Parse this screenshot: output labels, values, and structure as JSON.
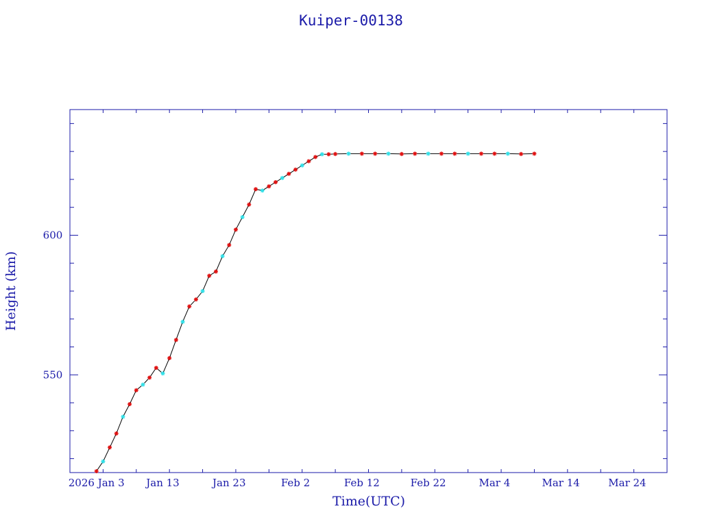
{
  "colors": {
    "axis": "#1a1aa8",
    "line": "#000000",
    "marker_primary": "#e01010",
    "marker_secondary": "#33e0e8"
  },
  "chart_data": {
    "type": "line",
    "title": "Kuiper-00138",
    "xlabel": "Time(UTC)",
    "ylabel": "Height (km)",
    "x_type": "date",
    "xlim": [
      "2025-12-30",
      "2026-03-30"
    ],
    "ylim": [
      515,
      645
    ],
    "x_ticks": [
      {
        "date": "2026-01-03",
        "label": "2026 Jan  3"
      },
      {
        "date": "2026-01-13",
        "label": "Jan 13"
      },
      {
        "date": "2026-01-23",
        "label": "Jan 23"
      },
      {
        "date": "2026-02-02",
        "label": "Feb  2"
      },
      {
        "date": "2026-02-12",
        "label": "Feb 12"
      },
      {
        "date": "2026-02-22",
        "label": "Feb 22"
      },
      {
        "date": "2026-03-04",
        "label": "Mar  4"
      },
      {
        "date": "2026-03-14",
        "label": "Mar 14"
      },
      {
        "date": "2026-03-24",
        "label": "Mar 24"
      }
    ],
    "y_ticks": [
      {
        "value": 550,
        "label": "550"
      },
      {
        "value": 600,
        "label": "600"
      }
    ],
    "series": [
      {
        "points": [
          [
            "2026-01-03",
            515.5
          ],
          [
            "2026-01-04",
            519.0
          ],
          [
            "2026-01-05",
            524.0
          ],
          [
            "2026-01-06",
            529.0
          ],
          [
            "2026-01-07",
            535.0
          ],
          [
            "2026-01-08",
            539.5
          ],
          [
            "2026-01-09",
            544.5
          ],
          [
            "2026-01-10",
            546.5
          ],
          [
            "2026-01-11",
            549.0
          ],
          [
            "2026-01-12",
            552.5
          ],
          [
            "2026-01-13",
            550.5
          ],
          [
            "2026-01-14",
            556.0
          ],
          [
            "2026-01-15",
            562.5
          ],
          [
            "2026-01-16",
            569.0
          ],
          [
            "2026-01-17",
            574.5
          ],
          [
            "2026-01-18",
            577.0
          ],
          [
            "2026-01-19",
            580.0
          ],
          [
            "2026-01-20",
            585.5
          ],
          [
            "2026-01-21",
            587.0
          ],
          [
            "2026-01-22",
            592.5
          ],
          [
            "2026-01-23",
            596.5
          ],
          [
            "2026-01-24",
            602.0
          ],
          [
            "2026-01-25",
            606.5
          ],
          [
            "2026-01-26",
            611.0
          ],
          [
            "2026-01-27",
            616.5
          ],
          [
            "2026-01-28",
            616.0
          ],
          [
            "2026-01-29",
            617.5
          ],
          [
            "2026-01-30",
            619.0
          ],
          [
            "2026-01-31",
            620.5
          ],
          [
            "2026-02-01",
            622.0
          ],
          [
            "2026-02-02",
            623.5
          ],
          [
            "2026-02-03",
            625.0
          ],
          [
            "2026-02-04",
            626.5
          ],
          [
            "2026-02-05",
            628.0
          ],
          [
            "2026-02-06",
            629.0
          ],
          [
            "2026-02-07",
            629.0
          ],
          [
            "2026-02-08",
            629.1
          ],
          [
            "2026-02-10",
            629.2
          ],
          [
            "2026-02-12",
            629.2
          ],
          [
            "2026-02-14",
            629.2
          ],
          [
            "2026-02-16",
            629.2
          ],
          [
            "2026-02-18",
            629.1
          ],
          [
            "2026-02-20",
            629.2
          ],
          [
            "2026-02-22",
            629.2
          ],
          [
            "2026-02-24",
            629.2
          ],
          [
            "2026-02-26",
            629.2
          ],
          [
            "2026-02-28",
            629.2
          ],
          [
            "2026-03-02",
            629.2
          ],
          [
            "2026-03-04",
            629.2
          ],
          [
            "2026-03-06",
            629.2
          ],
          [
            "2026-03-08",
            629.1
          ],
          [
            "2026-03-10",
            629.2
          ]
        ]
      }
    ],
    "grid": false,
    "legend": "none"
  }
}
